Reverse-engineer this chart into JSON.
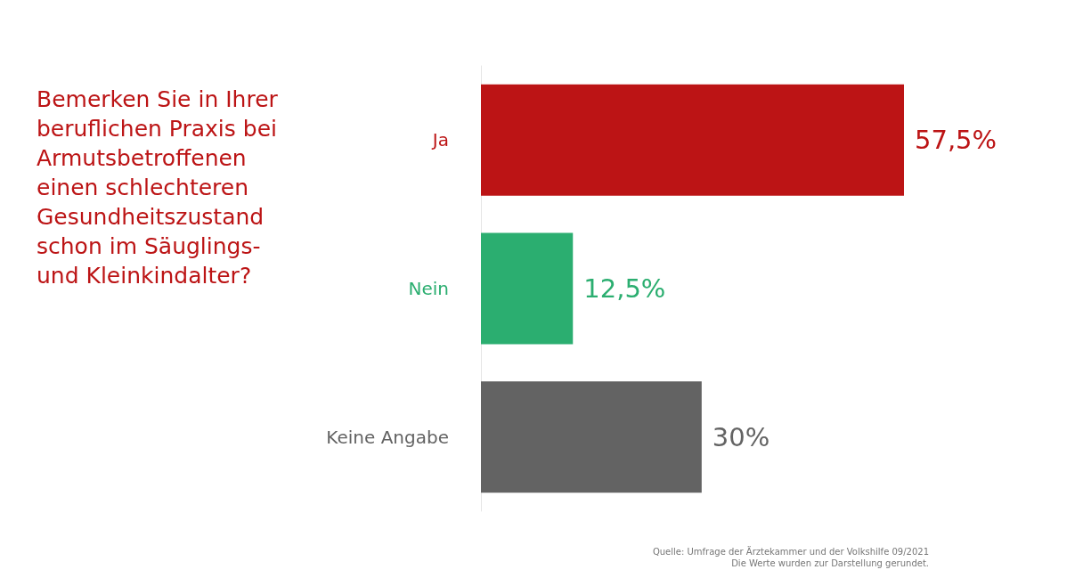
{
  "chart_data": {
    "type": "bar",
    "orientation": "horizontal",
    "title": "Bemerken Sie in Ihrer beruflichen Praxis bei Armutsbetroffenen einen schlechteren Gesundheitszustand schon im Säuglings- und Kleinkindalter?",
    "categories": [
      "Ja",
      "Nein",
      "Keine Angabe"
    ],
    "values": [
      57.5,
      12.5,
      30
    ],
    "value_labels": [
      "57,5%",
      "12,5%",
      "30%"
    ],
    "colors": [
      "#bc1415",
      "#2bae70",
      "#636363"
    ],
    "annotations": [
      "Quelle: Umfrage der Ärztekammer und der Volkshilfe 09/2021",
      "Die Werte wurden zur Darstellung gerundet."
    ]
  }
}
